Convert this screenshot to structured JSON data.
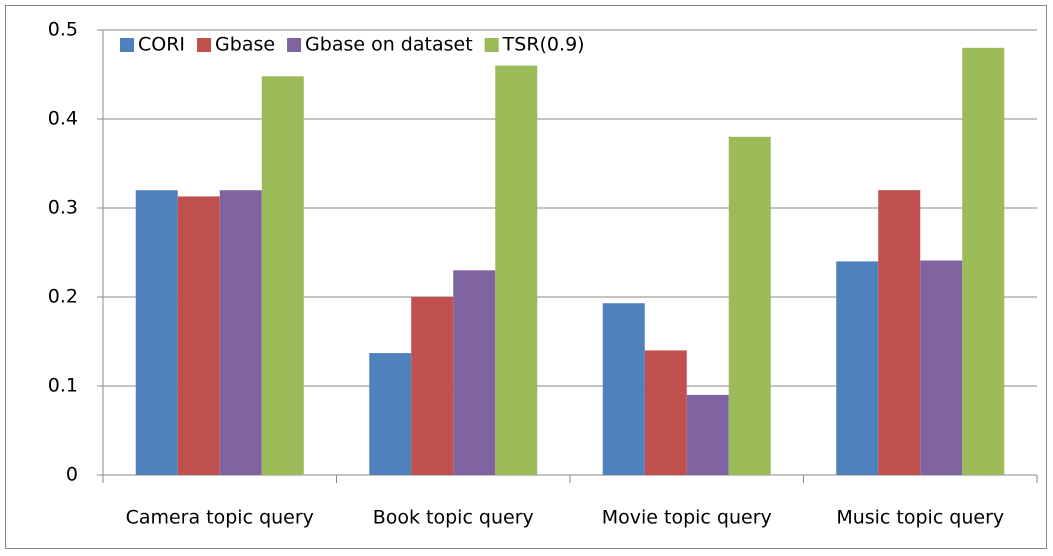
{
  "chart_data": {
    "type": "bar",
    "categories": [
      "Camera topic query",
      "Book topic query",
      "Movie topic query",
      "Music topic query"
    ],
    "series": [
      {
        "name": "CORI",
        "color": "#4f81bd",
        "values": [
          0.32,
          0.137,
          0.193,
          0.24
        ]
      },
      {
        "name": "Gbase",
        "color": "#c0504d",
        "values": [
          0.313,
          0.2,
          0.14,
          0.32
        ]
      },
      {
        "name": "Gbase on dataset",
        "color": "#8064a2",
        "values": [
          0.32,
          0.23,
          0.09,
          0.241
        ]
      },
      {
        "name": "TSR(0.9)",
        "color": "#9bbb59",
        "values": [
          0.448,
          0.46,
          0.38,
          0.48
        ]
      }
    ],
    "ylim": [
      0,
      0.5
    ],
    "yticks": [
      0,
      0.1,
      0.2,
      0.3,
      0.4,
      0.5
    ],
    "grid": true,
    "legend": "top-left"
  }
}
